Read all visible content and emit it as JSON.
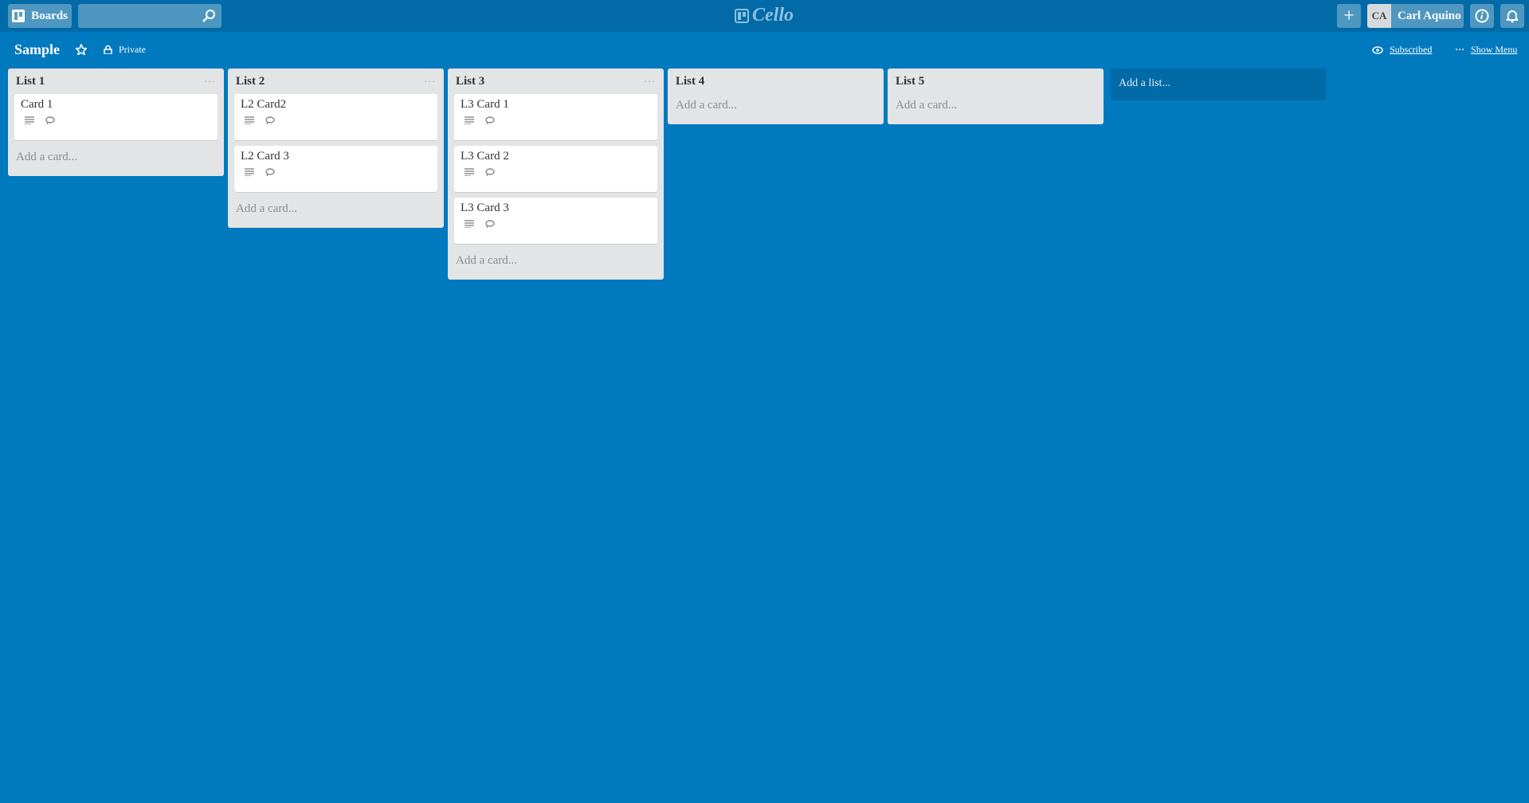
{
  "topbar": {
    "boards_label": "Boards",
    "search_placeholder": "",
    "logo": "Cello",
    "user_initials": "CA",
    "user_name": "Carl Aquino"
  },
  "board": {
    "title": "Sample",
    "visibility": "Private",
    "subscribed": "Subscribed",
    "show_menu": "Show Menu"
  },
  "lists": [
    {
      "title": "List 1",
      "cards": [
        "Card 1"
      ],
      "add_card": "Add a card..."
    },
    {
      "title": "List 2",
      "cards": [
        "L2 Card2",
        "L2 Card 3"
      ],
      "add_card": "Add a card..."
    },
    {
      "title": "List 3",
      "cards": [
        "L3 Card 1",
        "L3 Card 2",
        "L3 Card 3"
      ],
      "add_card": "Add a card..."
    },
    {
      "title": "List 4",
      "cards": [],
      "add_card": "Add a card..."
    },
    {
      "title": "List 5",
      "cards": [],
      "add_card": "Add a card..."
    }
  ],
  "add_list": "Add a list...",
  "colors": {
    "background": "#0079bf",
    "topbar": "#026aa7",
    "list": "#e2e4e6"
  }
}
